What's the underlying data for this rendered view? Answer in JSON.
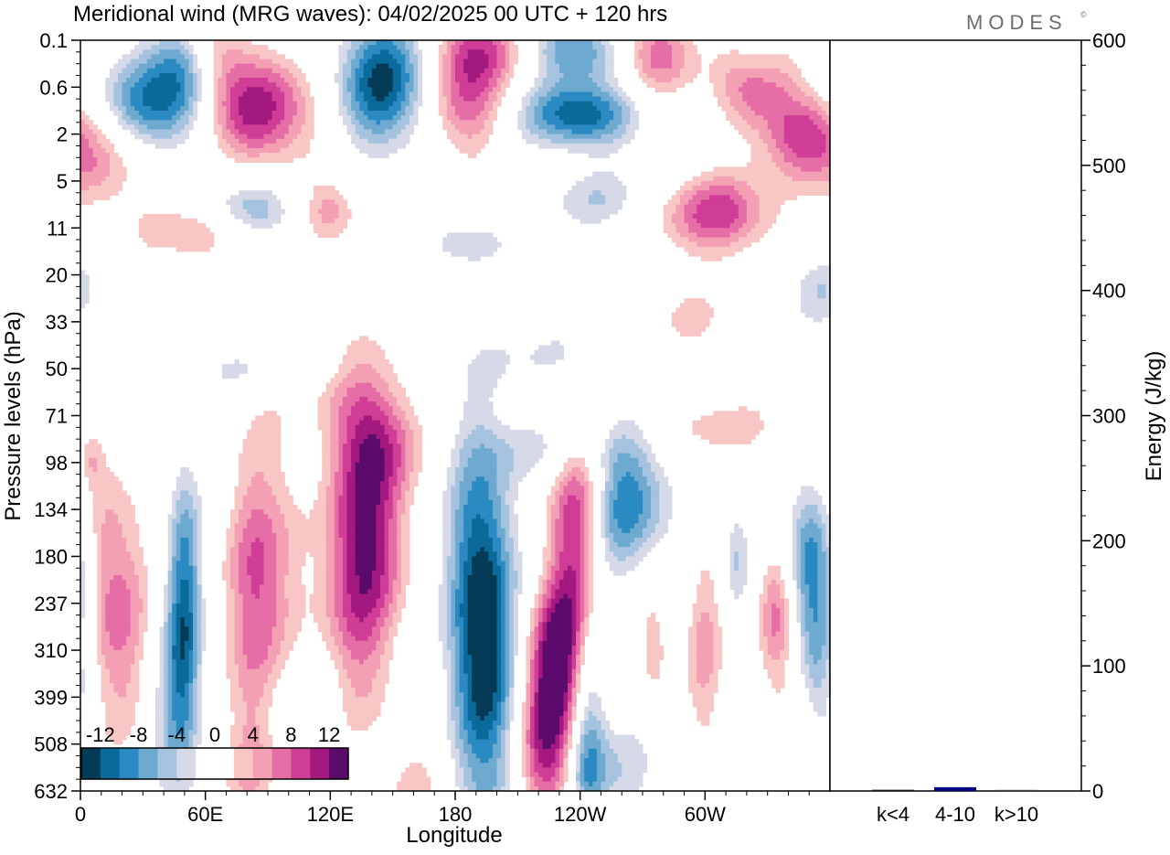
{
  "header": {
    "title": "Meridional wind (MRG waves):  04/02/2025  00 UTC  + 120 hrs",
    "brand": "MODES",
    "brand_mark": "©"
  },
  "chart_data": [
    {
      "type": "heatmap",
      "xlabel": "Longitude",
      "ylabel": "Pressure levels (hPa)",
      "x_ticks": [
        "0",
        "60E",
        "120E",
        "180",
        "120W",
        "60W"
      ],
      "y_ticks": [
        "0.1",
        "0.6",
        "2",
        "5",
        "11",
        "20",
        "33",
        "50",
        "71",
        "98",
        "134",
        "180",
        "237",
        "310",
        "399",
        "508",
        "632"
      ],
      "colorbar": {
        "labels": [
          "-12",
          "-8",
          "-4",
          "0",
          "4",
          "8",
          "12"
        ],
        "colors": [
          "#063b58",
          "#0a6a9a",
          "#2b8ac2",
          "#6ea9d0",
          "#a5c3df",
          "#d6d9e8",
          "#ffffff",
          "#ffffff",
          "#f8c6c4",
          "#f39fb4",
          "#e56ea6",
          "#cf3d96",
          "#a3197f",
          "#5b0b6b"
        ]
      },
      "palette": {
        "neg": [
          "#d6d9e8",
          "#a5c3df",
          "#6ea9d0",
          "#2b8ac2",
          "#0a6a9a",
          "#063b58"
        ],
        "pos": [
          "#f8c6c4",
          "#f39fb4",
          "#e56ea6",
          "#cf3d96",
          "#a3197f",
          "#5b0b6b"
        ]
      },
      "features": [
        {
          "lon": 10,
          "lev": 2.2,
          "amp": 9,
          "sx": 14,
          "sy": 0.9
        },
        {
          "lon": 30,
          "lev": 1.4,
          "amp": -12,
          "sx": 22,
          "sy": 0.75
        },
        {
          "lon": 50,
          "lev": 0.55,
          "amp": -8,
          "sx": 12,
          "sy": 0.8
        },
        {
          "lon": 65,
          "lev": 0.25,
          "amp": 7,
          "sx": 10,
          "sy": 0.7
        },
        {
          "lon": 85,
          "lev": 1.5,
          "amp": 13,
          "sx": 20,
          "sy": 0.8
        },
        {
          "lon": 80,
          "lev": 3.6,
          "amp": -9,
          "sx": 16,
          "sy": 0.45
        },
        {
          "lon": 55,
          "lev": 4.0,
          "amp": 6,
          "sx": 22,
          "sy": 0.5
        },
        {
          "lon": 120,
          "lev": 3.7,
          "amp": 7,
          "sx": 10,
          "sy": 0.5
        },
        {
          "lon": 145,
          "lev": 0.9,
          "amp": -14,
          "sx": 16,
          "sy": 1.0
        },
        {
          "lon": 185,
          "lev": 1.1,
          "amp": 10,
          "sx": 13,
          "sy": 1.0
        },
        {
          "lon": 195,
          "lev": 0.2,
          "amp": 7,
          "sx": 14,
          "sy": 0.5
        },
        {
          "lon": 240,
          "lev": 0.2,
          "amp": -10,
          "sx": 18,
          "sy": 0.5
        },
        {
          "lon": 240,
          "lev": 1.6,
          "amp": -13,
          "sx": 20,
          "sy": 0.5
        },
        {
          "lon": 275,
          "lev": 0.3,
          "amp": 10,
          "sx": 14,
          "sy": 0.6
        },
        {
          "lon": 250,
          "lev": 3.4,
          "amp": -5,
          "sx": 22,
          "sy": 0.5
        },
        {
          "lon": 185,
          "lev": 4.3,
          "amp": -5,
          "sx": 14,
          "sy": 0.4
        },
        {
          "lon": 305,
          "lev": 3.7,
          "amp": 11,
          "sx": 20,
          "sy": 0.6
        },
        {
          "lon": 325,
          "lev": 0.8,
          "amp": 10,
          "sx": 14,
          "sy": 0.8
        },
        {
          "lon": 345,
          "lev": 2.0,
          "amp": 9,
          "sx": 12,
          "sy": 0.7
        },
        {
          "lon": 325,
          "lev": 0.3,
          "amp": -6,
          "sx": 9,
          "sy": 0.5
        },
        {
          "lon": 355,
          "lev": 5.3,
          "amp": -5,
          "sx": 12,
          "sy": 0.6
        },
        {
          "lon": 290,
          "lev": 6.2,
          "amp": 4.5,
          "sx": 22,
          "sy": 0.8
        },
        {
          "lon": 245,
          "lev": 6.8,
          "amp": -4.5,
          "sx": 40,
          "sy": 0.6
        },
        {
          "lon": 130,
          "lev": 7.2,
          "amp": 4.6,
          "sx": 20,
          "sy": 0.9
        },
        {
          "lon": 145,
          "lev": 8.6,
          "amp": 6,
          "sx": 14,
          "sy": 0.7
        },
        {
          "lon": 230,
          "lev": 8.7,
          "amp": -4.5,
          "sx": 28,
          "sy": 0.5
        },
        {
          "lon": 310,
          "lev": 8.3,
          "amp": 4.5,
          "sx": 22,
          "sy": 0.5
        },
        {
          "lon": 90,
          "lev": 7.0,
          "amp": -4.3,
          "sx": 30,
          "sy": 0.4
        },
        {
          "lon": 20,
          "lev": 7.5,
          "amp": -4.2,
          "sx": 10,
          "sy": 0.3
        },
        {
          "lon": 12,
          "lev": 11.7,
          "amp": 7,
          "sx": 8,
          "sy": 2.0
        },
        {
          "lon": 25,
          "lev": 12.5,
          "amp": 5,
          "sx": 8,
          "sy": 2.0
        },
        {
          "lon": 50,
          "lev": 12.3,
          "amp": -12,
          "sx": 6,
          "sy": 2.2
        },
        {
          "lon": 42,
          "lev": 14.5,
          "amp": -5,
          "sx": 8,
          "sy": 1.5
        },
        {
          "lon": 82,
          "lev": 12.0,
          "amp": 8,
          "sx": 9,
          "sy": 2.2
        },
        {
          "lon": 95,
          "lev": 11.5,
          "amp": 5,
          "sx": 10,
          "sy": 2.5
        },
        {
          "lon": 138,
          "lev": 10.3,
          "amp": 13,
          "sx": 12,
          "sy": 1.7
        },
        {
          "lon": 130,
          "lev": 12.8,
          "amp": 6,
          "sx": 12,
          "sy": 1.8
        },
        {
          "lon": 105,
          "lev": 14.5,
          "amp": -4.5,
          "sx": 16,
          "sy": 1.2
        },
        {
          "lon": 192,
          "lev": 11.4,
          "amp": -14,
          "sx": 11,
          "sy": 2.1
        },
        {
          "lon": 195,
          "lev": 14.2,
          "amp": -8,
          "sx": 12,
          "sy": 1.6
        },
        {
          "lon": 210,
          "lev": 16.0,
          "amp": -4.6,
          "sx": 16,
          "sy": 0.7
        },
        {
          "lon": 160,
          "lev": 16.0,
          "amp": 4.5,
          "sx": 10,
          "sy": 1.0
        },
        {
          "lon": 240,
          "lev": 10.5,
          "amp": 14,
          "sx": 10,
          "sy": 1.8
        },
        {
          "lon": 230,
          "lev": 13.0,
          "amp": 10,
          "sx": 9,
          "sy": 1.0
        },
        {
          "lon": 225,
          "lev": 14.6,
          "amp": 13,
          "sx": 10,
          "sy": 1.3
        },
        {
          "lon": 220,
          "lev": 16.0,
          "amp": 7,
          "sx": 11,
          "sy": 0.8
        },
        {
          "lon": 262,
          "lev": 9.9,
          "amp": -11,
          "sx": 14,
          "sy": 1.0
        },
        {
          "lon": 250,
          "lev": 11.7,
          "amp": -5,
          "sx": 8,
          "sy": 1.5
        },
        {
          "lon": 243,
          "lev": 14.9,
          "amp": -9,
          "sx": 6,
          "sy": 1.6
        },
        {
          "lon": 275,
          "lev": 12.8,
          "amp": 5.5,
          "sx": 5,
          "sy": 0.9
        },
        {
          "lon": 300,
          "lev": 13.0,
          "amp": 6,
          "sx": 7,
          "sy": 1.7
        },
        {
          "lon": 315,
          "lev": 11.0,
          "amp": -6,
          "sx": 5,
          "sy": 0.9
        },
        {
          "lon": 335,
          "lev": 12.2,
          "amp": 9,
          "sx": 7,
          "sy": 1.2
        },
        {
          "lon": 350,
          "lev": 11.2,
          "amp": -10,
          "sx": 9,
          "sy": 1.3
        },
        {
          "lon": 355,
          "lev": 13.5,
          "amp": -5,
          "sx": 8,
          "sy": 1.6
        },
        {
          "lon": 345,
          "lev": 15.3,
          "amp": 4.5,
          "sx": 6,
          "sy": 1.0
        },
        {
          "lon": 255,
          "lev": 15.6,
          "amp": -5,
          "sx": 18,
          "sy": 0.8
        },
        {
          "lon": 80,
          "lev": 15.5,
          "amp": 4.6,
          "sx": 10,
          "sy": 1.0
        },
        {
          "lon": 5,
          "lev": 9.0,
          "amp": 4.3,
          "sx": 4,
          "sy": 0.4
        }
      ]
    },
    {
      "type": "bar",
      "ylabel": "Energy (J/kg)",
      "categories": [
        "k<4",
        "4-10",
        "k>10"
      ],
      "values": [
        1,
        3,
        0.5
      ],
      "colors": [
        "#1a1a1a",
        "#000080",
        "#444444"
      ],
      "ylim": [
        0,
        600
      ],
      "y_ticks": [
        "0",
        "100",
        "200",
        "300",
        "400",
        "500",
        "600"
      ]
    }
  ]
}
